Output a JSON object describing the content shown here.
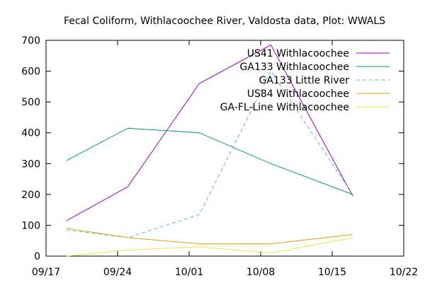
{
  "chart_data": {
    "type": "line",
    "title": "Fecal Coliform, Withlacoochee River, Valdosta data, Plot: WWALS",
    "xlabel": "",
    "ylabel": "",
    "x_ticks": [
      "09/17",
      "09/24",
      "10/01",
      "10/08",
      "10/15",
      "10/22"
    ],
    "x_tick_values": [
      "2019-09-17",
      "2019-09-24",
      "2019-10-01",
      "2019-10-08",
      "2019-10-15",
      "2019-10-22"
    ],
    "xlim": [
      "2019-09-17",
      "2019-10-22"
    ],
    "y_ticks": [
      0,
      100,
      200,
      300,
      400,
      500,
      600,
      700
    ],
    "ylim": [
      0,
      700
    ],
    "grid": false,
    "legend_position": "top-right",
    "series": [
      {
        "name": "US41 Withlacoochee",
        "color": "#9400d3",
        "dash": "solid",
        "x": [
          "2019-09-19",
          "2019-09-25",
          "2019-10-02",
          "2019-10-09",
          "2019-10-17"
        ],
        "values": [
          115,
          225,
          560,
          685,
          195
        ]
      },
      {
        "name": "GA133 Withlacoochee",
        "color": "#009e73",
        "dash": "solid",
        "x": [
          "2019-09-19",
          "2019-09-25",
          "2019-10-02",
          "2019-10-09",
          "2019-10-17"
        ],
        "values": [
          310,
          415,
          400,
          300,
          200
        ]
      },
      {
        "name": "GA133 Little River",
        "color": "#56b4e9",
        "dash": "dashed",
        "x": [
          "2019-09-19",
          "2019-09-25",
          "2019-10-02",
          "2019-10-09",
          "2019-10-17"
        ],
        "values": [
          85,
          60,
          135,
          600,
          200
        ]
      },
      {
        "name": "US84 Withlacoochee",
        "color": "#e69f00",
        "dash": "solid",
        "x": [
          "2019-09-19",
          "2019-09-25",
          "2019-10-02",
          "2019-10-09",
          "2019-10-17"
        ],
        "values": [
          90,
          60,
          40,
          40,
          70
        ]
      },
      {
        "name": "GA-FL-Line Withlacoochee",
        "color": "#f0e442",
        "dash": "solid",
        "x": [
          "2019-09-19",
          "2019-09-25",
          "2019-10-02",
          "2019-10-09",
          "2019-10-17"
        ],
        "values": [
          0,
          20,
          30,
          10,
          60
        ]
      }
    ]
  }
}
